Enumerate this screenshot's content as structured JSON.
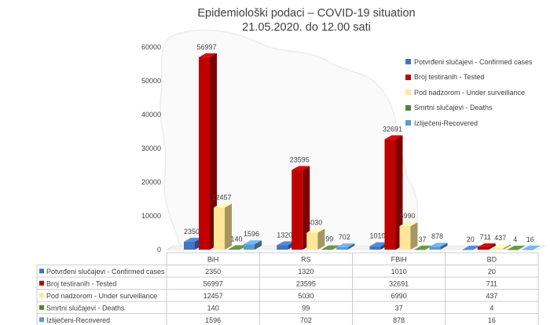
{
  "title_line1": "Epidemiološki podaci – COVID-19 situation",
  "title_line2": "21.05.2020. do 12.00 sati",
  "colors": {
    "confirmed": "#4472c4",
    "tested": "#c00000",
    "surveillance": "#ffe699",
    "deaths": "#548235",
    "recovered": "#5b9bd5"
  },
  "chart_data": {
    "type": "bar",
    "style": "3d-clustered-column-with-data-table",
    "title": "Epidemiološki podaci – COVID-19 situation 21.05.2020. do 12.00 sati",
    "categories": [
      "BiH",
      "RS",
      "FBiH",
      "BD"
    ],
    "ylim": [
      0,
      60000
    ],
    "yticks": [
      "0",
      "10000",
      "20000",
      "30000",
      "40000",
      "50000",
      "60000"
    ],
    "series": [
      {
        "name": "Potvrđeni slučajevi - Confirmed cases",
        "key": "confirmed",
        "values": [
          2350,
          1320,
          1010,
          20
        ]
      },
      {
        "name": "Broj testiranih - Tested",
        "key": "tested",
        "values": [
          56997,
          23595,
          32691,
          711
        ]
      },
      {
        "name": "Pod nadzorom - Under surveillance",
        "key": "surveillance",
        "values": [
          12457,
          5030,
          6990,
          437
        ]
      },
      {
        "name": "Smrtni slučajevi - Deaths",
        "key": "deaths",
        "values": [
          140,
          99,
          37,
          4
        ]
      },
      {
        "name": "Izliječeni-Recovered",
        "key": "recovered",
        "values": [
          1596,
          702,
          878,
          16
        ]
      }
    ]
  }
}
